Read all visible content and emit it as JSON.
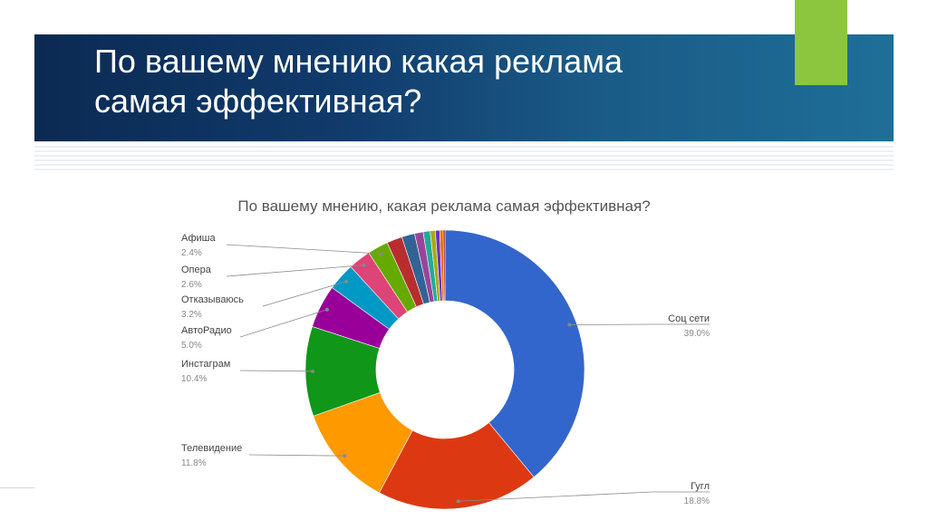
{
  "slide": {
    "title_line1": "По вашему мнению какая реклама",
    "title_line2": "самая эффективная?",
    "accent_green": "#8cc63f",
    "banner_color": "#103a6b"
  },
  "chart_data": {
    "type": "pie",
    "title": "По вашему мнению, какая реклама самая эффективная?",
    "donut": true,
    "slices": [
      {
        "label": "Соц сети",
        "value": 39.0,
        "pct_label": "39.0%",
        "color": "#3366cc"
      },
      {
        "label": "Гугл",
        "value": 18.8,
        "pct_label": "18.8%",
        "color": "#dc3912"
      },
      {
        "label": "Телевидение",
        "value": 11.8,
        "pct_label": "11.8%",
        "color": "#ff9900"
      },
      {
        "label": "Инстаграм",
        "value": 10.4,
        "pct_label": "10.4%",
        "color": "#109618"
      },
      {
        "label": "АвтоРадио",
        "value": 5.0,
        "pct_label": "5.0%",
        "color": "#990099"
      },
      {
        "label": "Отказываюсь",
        "value": 3.2,
        "pct_label": "3.2%",
        "color": "#0099c6"
      },
      {
        "label": "Опера",
        "value": 2.6,
        "pct_label": "2.6%",
        "color": "#dd4477"
      },
      {
        "label": "Афиша",
        "value": 2.4,
        "pct_label": "2.4%",
        "color": "#66aa00"
      },
      {
        "label": "",
        "value": 1.8,
        "color": "#b82e2e"
      },
      {
        "label": "",
        "value": 1.5,
        "color": "#316395"
      },
      {
        "label": "",
        "value": 1.0,
        "color": "#994499"
      },
      {
        "label": "",
        "value": 0.8,
        "color": "#22aa99"
      },
      {
        "label": "",
        "value": 0.6,
        "color": "#aaaa11"
      },
      {
        "label": "",
        "value": 0.5,
        "color": "#6633cc"
      },
      {
        "label": "",
        "value": 0.4,
        "color": "#e67300"
      },
      {
        "label": "",
        "value": 0.2,
        "color": "#8b0707"
      }
    ]
  }
}
